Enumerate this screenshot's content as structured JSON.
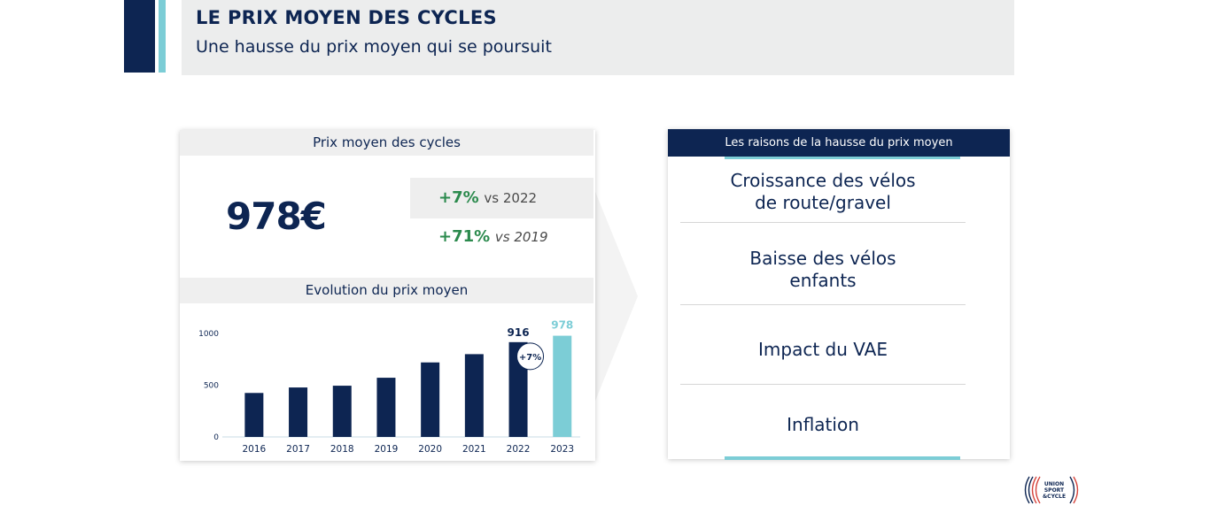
{
  "header": {
    "title": "LE PRIX MOYEN DES CYCLES",
    "subtitle": "Une hausse du prix moyen qui se poursuit"
  },
  "left_card": {
    "title": "Prix moyen des cycles",
    "price": "978€",
    "stats": [
      {
        "value": "+7%",
        "note": "vs 2022"
      },
      {
        "value": "+71%",
        "note": "vs 2019"
      }
    ],
    "chart_title": "Evolution du prix moyen"
  },
  "right_card": {
    "title": "Les raisons de la hausse du prix moyen",
    "reasons": [
      "Croissance des vélos",
      "de route/gravel",
      "Baisse des vélos",
      "enfants",
      "Impact du VAE",
      "Inflation"
    ]
  },
  "logo": {
    "text_1": "UNION",
    "text_2": "SPORT",
    "text_3": "&CYCLE"
  },
  "colors": {
    "navy": "#0d2552",
    "teal": "#7ccdd6",
    "green": "#2b8a4d"
  },
  "chart_data": {
    "type": "bar",
    "title": "Evolution du prix moyen",
    "categories": [
      "2016",
      "2017",
      "2018",
      "2019",
      "2020",
      "2021",
      "2022",
      "2023"
    ],
    "values": [
      425,
      478,
      495,
      572,
      720,
      800,
      916,
      978
    ],
    "data_labels": {
      "2022": "916",
      "2023": "978"
    },
    "badge": "+7%",
    "highlight_category": "2023",
    "yticks": [
      0,
      500,
      1000
    ],
    "ylim": [
      0,
      1000
    ],
    "xlabel": "",
    "ylabel": "",
    "grid": false,
    "legend": "none"
  }
}
